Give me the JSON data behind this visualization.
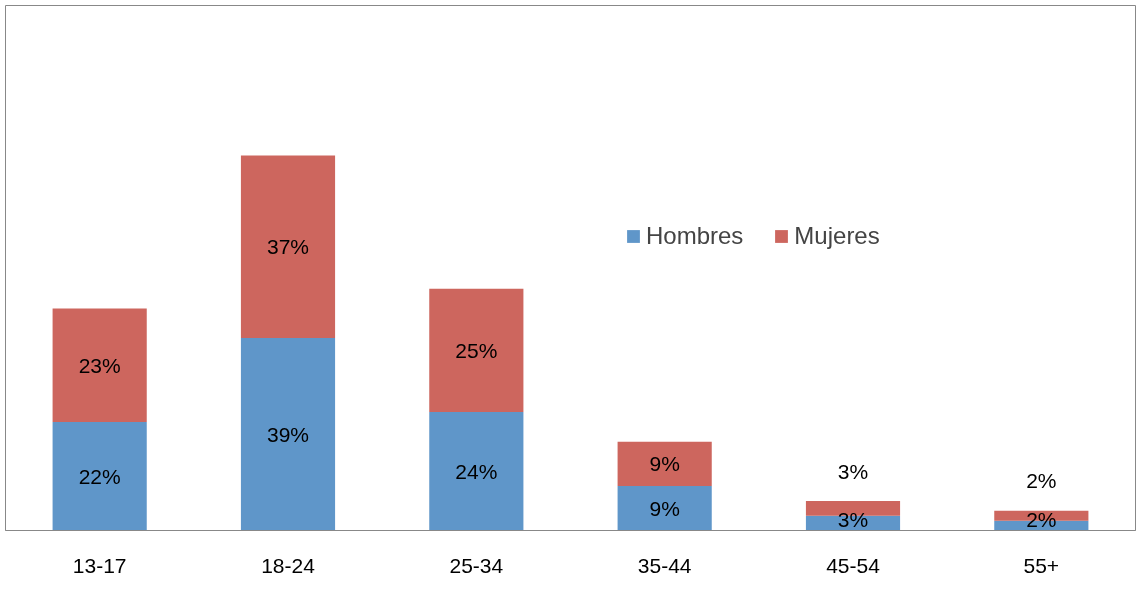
{
  "chart_data": {
    "type": "bar",
    "stacked": true,
    "categories": [
      "13-17",
      "18-24",
      "25-34",
      "35-44",
      "45-54",
      "55+"
    ],
    "series": [
      {
        "name": "Hombres",
        "color": "#5f96c9",
        "values": [
          22,
          39,
          24,
          9,
          3,
          2
        ],
        "value_labels": [
          "22%",
          "39%",
          "24%",
          "9%",
          "3%",
          "2%"
        ]
      },
      {
        "name": "Mujeres",
        "color": "#cd665e",
        "values": [
          23,
          37,
          25,
          9,
          3,
          2
        ],
        "value_labels": [
          "23%",
          "37%",
          "25%",
          "9%",
          "3%",
          "2%"
        ]
      }
    ],
    "legend": "top right",
    "grid": false
  }
}
